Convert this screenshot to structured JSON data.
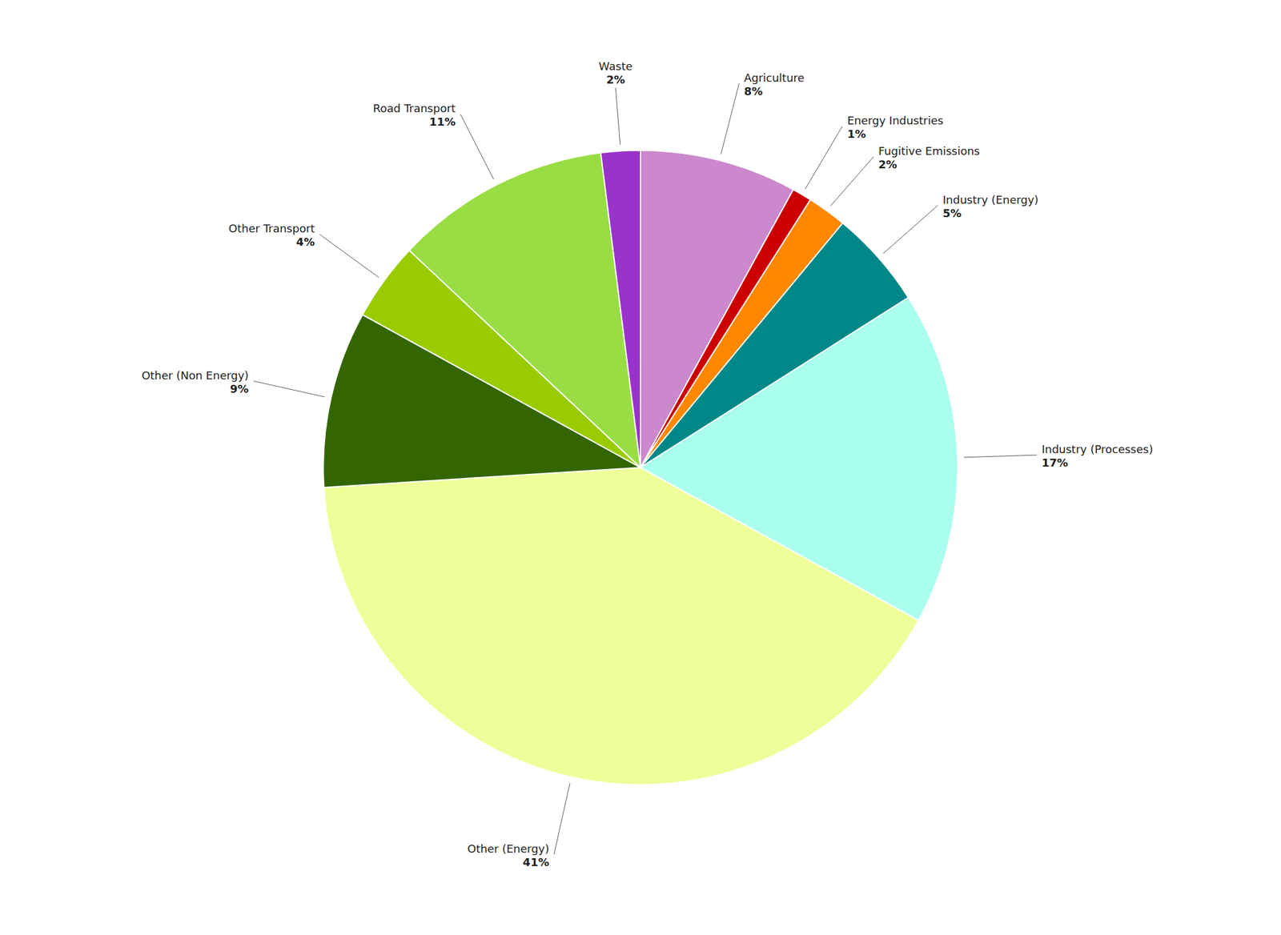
{
  "chart_data": {
    "type": "pie",
    "categories": [
      "Agriculture",
      "Energy Industries",
      "Fugitive Emissions",
      "Industry (Energy)",
      "Industry (Processes)",
      "Other (Energy)",
      "Other (Non Energy)",
      "Other Transport",
      "Road Transport",
      "Waste"
    ],
    "values": [
      8,
      1,
      2,
      5,
      17,
      41,
      9,
      4,
      11,
      2
    ],
    "value_labels": [
      "8%",
      "1%",
      "2%",
      "5%",
      "17%",
      "41%",
      "9%",
      "4%",
      "11%",
      "2%"
    ],
    "colors": [
      "#cc88cc",
      "#cc0000",
      "#ff8800",
      "#008888",
      "#aaffee",
      "#eeff99",
      "#336600",
      "#99cc00",
      "#99dd44",
      "#9933cc"
    ],
    "data_labels": true
  }
}
